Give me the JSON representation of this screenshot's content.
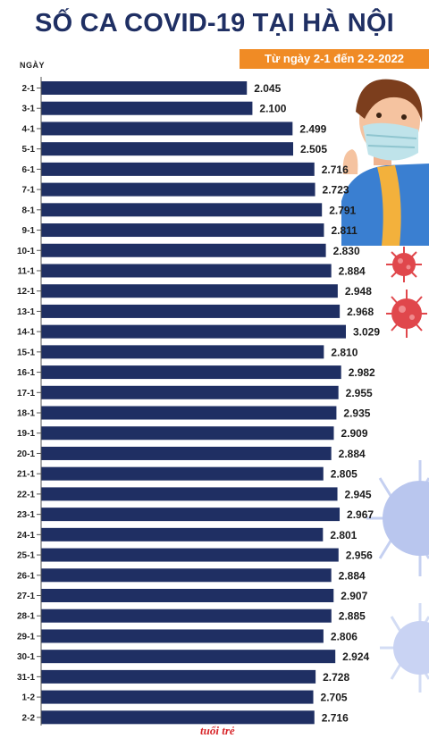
{
  "header": {
    "title": "SỐ CA COVID-19 TẠI HÀ NỘI",
    "subtitle": "Từ ngày 2-1 đến 2-2-2022"
  },
  "footer": {
    "logo_text": "tuổi trẻ"
  },
  "colors": {
    "bar": "#1f2f63",
    "title": "#1f2f63",
    "subtitle_bg": "#f08b25",
    "virus_red": "#e0474c",
    "virus_blue": "#b9c6ee"
  },
  "chart_data": {
    "type": "bar",
    "orientation": "horizontal",
    "title": "SỐ CA COVID-19 TẠI HÀ NỘI",
    "subtitle": "Từ ngày 2-1 đến 2-2-2022",
    "ylabel": "NGÀY",
    "xlim": [
      0,
      3029
    ],
    "grid": false,
    "categories": [
      "2-1",
      "3-1",
      "4-1",
      "5-1",
      "6-1",
      "7-1",
      "8-1",
      "9-1",
      "10-1",
      "11-1",
      "12-1",
      "13-1",
      "14-1",
      "15-1",
      "16-1",
      "17-1",
      "18-1",
      "19-1",
      "20-1",
      "21-1",
      "22-1",
      "23-1",
      "24-1",
      "25-1",
      "26-1",
      "27-1",
      "28-1",
      "29-1",
      "30-1",
      "31-1",
      "1-2",
      "2-2"
    ],
    "values": [
      2045,
      2100,
      2499,
      2505,
      2716,
      2723,
      2791,
      2811,
      2830,
      2884,
      2948,
      2968,
      3029,
      2810,
      2982,
      2955,
      2935,
      2909,
      2884,
      2805,
      2945,
      2967,
      2801,
      2956,
      2884,
      2907,
      2885,
      2806,
      2924,
      2728,
      2705,
      2716
    ],
    "value_labels": [
      "2.045",
      "2.100",
      "2.499",
      "2.505",
      "2.716",
      "2.723",
      "2.791",
      "2.811",
      "2.830",
      "2.884",
      "2.948",
      "2.968",
      "3.029",
      "2.810",
      "2.982",
      "2.955",
      "2.935",
      "2.909",
      "2.884",
      "2.805",
      "2.945",
      "2.967",
      "2.801",
      "2.956",
      "2.884",
      "2.907",
      "2.885",
      "2.806",
      "2.924",
      "2.728",
      "2.705",
      "2.716"
    ]
  }
}
